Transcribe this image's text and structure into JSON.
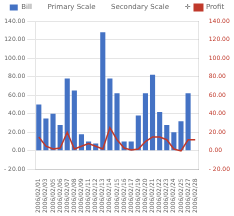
{
  "chart_data": {
    "type": "bar",
    "categories": [
      "2006/02/01",
      "2006/02/03",
      "2006/02/05",
      "2006/02/06",
      "2006/02/07",
      "2006/02/08",
      "2006/02/09",
      "2006/02/11",
      "2006/02/12",
      "2006/02/13",
      "2006/02/14",
      "2006/02/15",
      "2006/02/16",
      "2006/02/17",
      "2006/02/19",
      "2006/02/20",
      "2006/02/21",
      "2006/02/22",
      "2006/02/23",
      "2006/02/24",
      "2006/02/25",
      "2006/02/27",
      "2006/02/28"
    ],
    "series": [
      {
        "name": "Bill",
        "type": "bar",
        "color": "#4472c4",
        "values": [
          50,
          35,
          40,
          28,
          78,
          65,
          18,
          10,
          8,
          128,
          78,
          62,
          10,
          10,
          38,
          62,
          82,
          42,
          28,
          20,
          32,
          62,
          0
        ]
      },
      {
        "name": "Profit",
        "type": "line",
        "color": "#c0392b",
        "axis": "y2",
        "values": [
          15,
          5,
          2,
          3,
          20,
          2,
          5,
          8,
          5,
          2,
          25,
          12,
          3,
          1,
          2,
          10,
          15,
          15,
          12,
          2,
          0,
          12,
          12
        ]
      }
    ],
    "annotations": [
      "Primary Scale",
      "Secondary Scale",
      "✛"
    ],
    "ylim": [
      -20,
      140
    ],
    "yticks": [
      {
        "value": -20,
        "label": "- 20.00"
      },
      {
        "value": 0,
        "label": "0.00"
      },
      {
        "value": 20,
        "label": "20.00"
      },
      {
        "value": 40,
        "label": "40.00"
      },
      {
        "value": 60,
        "label": "60.00"
      },
      {
        "value": 80,
        "label": "80.00"
      },
      {
        "value": 100,
        "label": "100.00"
      },
      {
        "value": 120,
        "label": "120.00"
      },
      {
        "value": 140,
        "label": "140.00"
      }
    ],
    "y2lim": [
      -20,
      140
    ],
    "y2ticks": [
      {
        "value": -20,
        "label": "- 20.00"
      },
      {
        "value": 0,
        "label": "0.00"
      },
      {
        "value": 20,
        "label": "20.00"
      },
      {
        "value": 40,
        "label": "40.00"
      },
      {
        "value": 60,
        "label": "60.00"
      },
      {
        "value": 80,
        "label": "80.00"
      },
      {
        "value": 100,
        "label": "100.00"
      },
      {
        "value": 120,
        "label": "120.00"
      },
      {
        "value": 140,
        "label": "140.00"
      }
    ],
    "grid": true
  }
}
